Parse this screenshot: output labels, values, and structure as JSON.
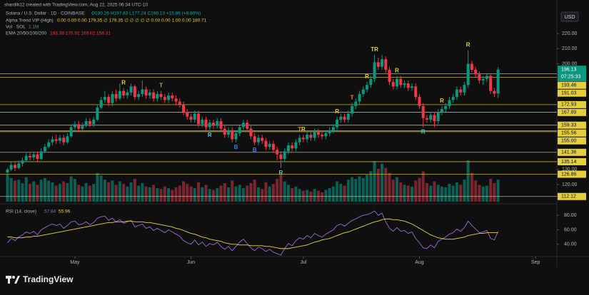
{
  "header": {
    "created": "shardib12 created with TradingView.com, Aug 22, 2025 06:34 UTC-10",
    "legend_title": "Solana / U.S. Dollar · 1D · COINBASE",
    "legend_ohlc": "O180.26 H197.83 L177.24 C196.13 +15.86 (+8.80%)",
    "indicators": [
      {
        "name": "Alpha Trend VIP (High)",
        "values": "0.00 0.00 0.00 179.35 ∅ 179.35 ∅ ∅ ∅ ∅ ∅ 0.00 0.00 1.00 0.00 180.71"
      },
      {
        "name": "Vol · SOL",
        "values": "1.1M"
      },
      {
        "name": "EMA 20/50/100/200",
        "values": "183.38 175.92 169.02 158.31"
      }
    ],
    "currency": "USD",
    "countdown": "07:25:33",
    "logo": "TradingView"
  },
  "chart_data": [
    {
      "type": "candlestick",
      "up_color": "#089981",
      "down_color": "#f23645",
      "level_color": "#e6cf3c",
      "volume_up_color": "#0b5f55",
      "volume_down_color": "#7a2530",
      "open": [
        128,
        130,
        133,
        131,
        134,
        136,
        139,
        138,
        140,
        137,
        142,
        145,
        148,
        150,
        149,
        151,
        148,
        152,
        158,
        160,
        157,
        159,
        162,
        160,
        163,
        171,
        176,
        178,
        174,
        180,
        177,
        182,
        179,
        181,
        185,
        178,
        180,
        183,
        179,
        181,
        177,
        180,
        178,
        176,
        179,
        177,
        175,
        173,
        168,
        165,
        163,
        167,
        160,
        163,
        158,
        161,
        159,
        162,
        157,
        153,
        156,
        150,
        154,
        158,
        161,
        157,
        152,
        148,
        151,
        149,
        145,
        147,
        143,
        140,
        137,
        142,
        146,
        144,
        148,
        151,
        150,
        153,
        151,
        155,
        153,
        152,
        154,
        156,
        158,
        163,
        165,
        163,
        167,
        172,
        175,
        180,
        183,
        186,
        190,
        201,
        198,
        203,
        196,
        188,
        185,
        190,
        186,
        187,
        184,
        185,
        178,
        172,
        164,
        163,
        166,
        162,
        168,
        170,
        172,
        176,
        178,
        183,
        181,
        186,
        200,
        196,
        193,
        189,
        190,
        192,
        182,
        180.26
      ],
      "high": [
        131,
        135,
        135,
        136,
        138,
        141,
        141,
        142,
        142,
        144,
        147,
        150,
        152,
        153,
        153,
        153,
        154,
        160,
        162,
        162,
        161,
        164,
        164,
        165,
        173,
        178,
        182,
        180,
        182,
        183,
        187,
        184,
        183,
        187,
        186,
        182,
        189,
        185,
        183,
        183,
        182,
        182,
        180,
        181,
        181,
        179,
        177,
        175,
        170,
        167,
        169,
        169,
        165,
        165,
        163,
        163,
        164,
        164,
        159,
        158,
        158,
        156,
        160,
        163,
        163,
        159,
        154,
        153,
        153,
        151,
        149,
        149,
        145,
        142,
        144,
        148,
        148,
        150,
        153,
        153,
        155,
        155,
        157,
        157,
        155,
        156,
        158,
        160,
        165,
        167,
        167,
        169,
        174,
        177,
        182,
        185,
        188,
        192,
        206,
        204,
        206,
        205,
        198,
        190,
        192,
        192,
        189,
        189,
        187,
        187,
        180,
        174,
        166,
        168,
        168,
        170,
        172,
        174,
        178,
        180,
        185,
        185,
        188,
        209,
        202,
        198,
        195,
        192,
        194,
        193,
        184,
        197.83
      ],
      "low": [
        126,
        129,
        129,
        130,
        132,
        135,
        136,
        136,
        135,
        136,
        141,
        144,
        146,
        147,
        147,
        146,
        147,
        151,
        156,
        155,
        155,
        158,
        158,
        158,
        162,
        170,
        174,
        172,
        172,
        175,
        176,
        177,
        177,
        179,
        176,
        176,
        178,
        177,
        177,
        175,
        175,
        176,
        174,
        174,
        175,
        173,
        171,
        166,
        163,
        161,
        161,
        158,
        158,
        156,
        156,
        157,
        157,
        155,
        151,
        151,
        148,
        148,
        152,
        156,
        155,
        150,
        146,
        146,
        147,
        143,
        143,
        141,
        136,
        131,
        135,
        140,
        142,
        142,
        146,
        148,
        148,
        149,
        149,
        151,
        150,
        150,
        152,
        154,
        156,
        161,
        161,
        161,
        165,
        170,
        173,
        178,
        181,
        184,
        188,
        196,
        196,
        194,
        186,
        183,
        183,
        184,
        184,
        182,
        182,
        176,
        170,
        158,
        161,
        161,
        158,
        160,
        166,
        168,
        170,
        174,
        176,
        179,
        179,
        184,
        194,
        191,
        187,
        186,
        188,
        180,
        178,
        177.24
      ],
      "close": [
        130,
        133,
        131,
        134,
        136,
        139,
        138,
        140,
        137,
        142,
        145,
        148,
        150,
        149,
        151,
        148,
        152,
        158,
        160,
        157,
        159,
        162,
        160,
        163,
        171,
        176,
        178,
        174,
        180,
        177,
        182,
        179,
        181,
        185,
        178,
        180,
        183,
        179,
        181,
        177,
        180,
        178,
        176,
        179,
        177,
        175,
        173,
        168,
        165,
        163,
        167,
        160,
        163,
        158,
        161,
        159,
        162,
        157,
        153,
        156,
        150,
        154,
        158,
        161,
        157,
        152,
        148,
        151,
        149,
        145,
        147,
        143,
        140,
        137,
        142,
        146,
        144,
        148,
        151,
        150,
        153,
        151,
        155,
        153,
        152,
        154,
        156,
        158,
        163,
        165,
        163,
        167,
        172,
        175,
        180,
        183,
        186,
        190,
        201,
        198,
        203,
        196,
        188,
        185,
        190,
        186,
        187,
        184,
        185,
        178,
        172,
        164,
        163,
        166,
        162,
        168,
        170,
        172,
        176,
        178,
        183,
        181,
        186,
        200,
        196,
        193,
        189,
        190,
        192,
        182,
        180.26,
        196.13
      ],
      "volume": [
        3.2,
        2.8,
        2.5,
        2.6,
        2.2,
        2.9,
        2.1,
        2.4,
        2.0,
        2.6,
        2.8,
        2.5,
        2.3,
        1.9,
        2.1,
        2.4,
        2.2,
        3.0,
        2.7,
        2.0,
        1.8,
        2.2,
        1.9,
        2.1,
        3.4,
        3.1,
        2.6,
        2.3,
        2.5,
        2.0,
        2.4,
        2.1,
        1.8,
        2.3,
        2.7,
        1.9,
        2.2,
        1.8,
        1.7,
        2.0,
        1.6,
        1.5,
        1.8,
        1.6,
        1.4,
        1.7,
        1.9,
        2.4,
        2.1,
        1.8,
        1.6,
        2.3,
        1.7,
        2.0,
        1.5,
        1.4,
        1.6,
        1.9,
        2.2,
        1.7,
        2.5,
        1.8,
        2.0,
        1.6,
        1.9,
        2.2,
        2.6,
        1.7,
        1.5,
        2.3,
        1.8,
        2.1,
        2.7,
        3.3,
        2.4,
        2.0,
        1.6,
        1.8,
        1.5,
        1.3,
        1.4,
        1.2,
        1.5,
        1.3,
        1.1,
        1.4,
        1.6,
        1.8,
        2.4,
        2.1,
        1.9,
        2.6,
        2.9,
        2.7,
        3.0,
        2.8,
        3.2,
        3.6,
        4.8,
        3.9,
        4.5,
        4.0,
        3.4,
        2.6,
        2.9,
        2.3,
        2.0,
        1.9,
        1.8,
        2.5,
        2.8,
        3.6,
        2.2,
        1.9,
        2.4,
        2.0,
        1.8,
        1.7,
        2.1,
        1.9,
        2.3,
        2.0,
        2.6,
        4.9,
        3.4,
        2.5,
        2.0,
        1.8,
        1.9,
        2.7,
        2.2,
        2.6
      ],
      "xlim": [
        -2,
        146.7
      ],
      "xticks": [
        {
          "value": 18,
          "label": "May"
        },
        {
          "value": 49,
          "label": "Jun"
        },
        {
          "value": 79,
          "label": "Jul"
        },
        {
          "value": 110,
          "label": "Aug"
        },
        {
          "value": 141,
          "label": "Sep"
        }
      ],
      "ylim": [
        108.7,
        237.5
      ],
      "yticks": [
        {
          "value": 220,
          "label": "220.00"
        },
        {
          "value": 210,
          "label": "210.00"
        },
        {
          "value": 200,
          "label": "200.00"
        },
        {
          "value": 180,
          "label": "180.00"
        },
        {
          "value": 130,
          "label": "130.00"
        },
        {
          "value": 120,
          "label": "120.00"
        }
      ],
      "levels": [
        {
          "value": 193.46,
          "label": "193.46"
        },
        {
          "value": 191.03,
          "label": "191.03"
        },
        {
          "value": 172.93,
          "label": "172.93"
        },
        {
          "value": 167.89,
          "label": "167.89"
        },
        {
          "value": 159.33,
          "label": "159.33"
        },
        {
          "value": 155.56,
          "label": "155.56"
        },
        {
          "value": 155,
          "label": "155.00"
        },
        {
          "value": 141.36,
          "label": "141.36"
        },
        {
          "value": 135.14,
          "label": "135.14"
        },
        {
          "value": 126.86,
          "label": "126.86"
        },
        {
          "value": 112.12,
          "label": "112.12"
        }
      ],
      "annotations": [
        {
          "text": "R",
          "at": 31,
          "position": "above",
          "color": "#e6cf3c"
        },
        {
          "text": "T",
          "at": 41,
          "position": "above",
          "color": "#e0913a"
        },
        {
          "text": "R",
          "at": 54,
          "position": "below",
          "color": "#4fd1c5"
        },
        {
          "text": "B",
          "at": 61,
          "position": "below",
          "color": "#3d7be0"
        },
        {
          "text": "B",
          "at": 66,
          "position": "below",
          "color": "#3d7be0"
        },
        {
          "text": "R",
          "at": 73,
          "position": "below",
          "color": "#4fd1c5"
        },
        {
          "text": "T",
          "at": 78,
          "position": "above",
          "color": "#e0913a"
        },
        {
          "text": "R",
          "at": 79,
          "position": "above",
          "color": "#e6cf3c"
        },
        {
          "text": "R",
          "at": 88,
          "position": "above",
          "color": "#e6cf3c"
        },
        {
          "text": "T",
          "at": 92,
          "position": "above",
          "color": "#e0913a"
        },
        {
          "text": "R",
          "at": 96,
          "position": "above",
          "color": "#e6cf3c"
        },
        {
          "text": "TR",
          "at": 98,
          "position": "above",
          "color": "#e6cf3c"
        },
        {
          "text": "R",
          "at": 104,
          "position": "above",
          "color": "#e6cf3c"
        },
        {
          "text": "R",
          "at": 111,
          "position": "below",
          "color": "#4fd1c5"
        },
        {
          "text": "R",
          "at": 116,
          "position": "above",
          "color": "#e6cf3c"
        },
        {
          "text": "R",
          "at": 123,
          "position": "above",
          "color": "#e6cf3c"
        }
      ]
    },
    {
      "type": "line",
      "title": "RSI (14, close)",
      "ylim": [
        25,
        92
      ],
      "yticks": [
        {
          "value": 80,
          "label": "80.00"
        },
        {
          "value": 60,
          "label": "60.00"
        },
        {
          "value": 40,
          "label": "40.00"
        }
      ],
      "series": [
        {
          "color": "#9c6bd6",
          "values": [
            42,
            48,
            45,
            50,
            53,
            57,
            55,
            58,
            53,
            60,
            63,
            66,
            68,
            66,
            68,
            62,
            66,
            71,
            72,
            67,
            68,
            71,
            67,
            70,
            76,
            78,
            79,
            73,
            76,
            71,
            74,
            69,
            71,
            73,
            64,
            66,
            68,
            62,
            64,
            59,
            62,
            59,
            56,
            60,
            57,
            54,
            51,
            45,
            42,
            40,
            46,
            39,
            43,
            37,
            41,
            39,
            43,
            37,
            33,
            37,
            31,
            37,
            43,
            47,
            41,
            35,
            31,
            36,
            34,
            30,
            33,
            29,
            27,
            25,
            34,
            41,
            38,
            45,
            49,
            47,
            52,
            49,
            55,
            52,
            50,
            54,
            57,
            60,
            66,
            68,
            65,
            69,
            73,
            75,
            78,
            80,
            81,
            83,
            86,
            80,
            83,
            71,
            62,
            58,
            63,
            58,
            59,
            55,
            57,
            48,
            42,
            35,
            34,
            39,
            35,
            44,
            47,
            50,
            54,
            56,
            61,
            58,
            63,
            72,
            66,
            61,
            56,
            57,
            59,
            48,
            46,
            57.84
          ]
        },
        {
          "color": "#e8d44d",
          "values": [
            50,
            50,
            49,
            49,
            49,
            50,
            50,
            51,
            51,
            52,
            53,
            54,
            55,
            56,
            57,
            58,
            59,
            60,
            61,
            62,
            63,
            64,
            65,
            66,
            67,
            68,
            69,
            70,
            70,
            71,
            71,
            71,
            72,
            72,
            71,
            71,
            71,
            70,
            70,
            69,
            68,
            67,
            66,
            65,
            64,
            62,
            61,
            59,
            57,
            55,
            54,
            52,
            50,
            49,
            47,
            46,
            45,
            44,
            42,
            41,
            40,
            40,
            39,
            39,
            39,
            38,
            38,
            38,
            38,
            37,
            37,
            36,
            35,
            34,
            34,
            34,
            35,
            36,
            37,
            38,
            39,
            41,
            43,
            44,
            46,
            47,
            48,
            50,
            52,
            54,
            56,
            57,
            59,
            61,
            63,
            65,
            67,
            69,
            71,
            72,
            74,
            75,
            75,
            74,
            74,
            73,
            72,
            70,
            68,
            65,
            62,
            59,
            56,
            53,
            51,
            49,
            48,
            47,
            47,
            47,
            48,
            49,
            50,
            52,
            53,
            54,
            55,
            55,
            56,
            56,
            56,
            55.96
          ]
        }
      ]
    }
  ]
}
